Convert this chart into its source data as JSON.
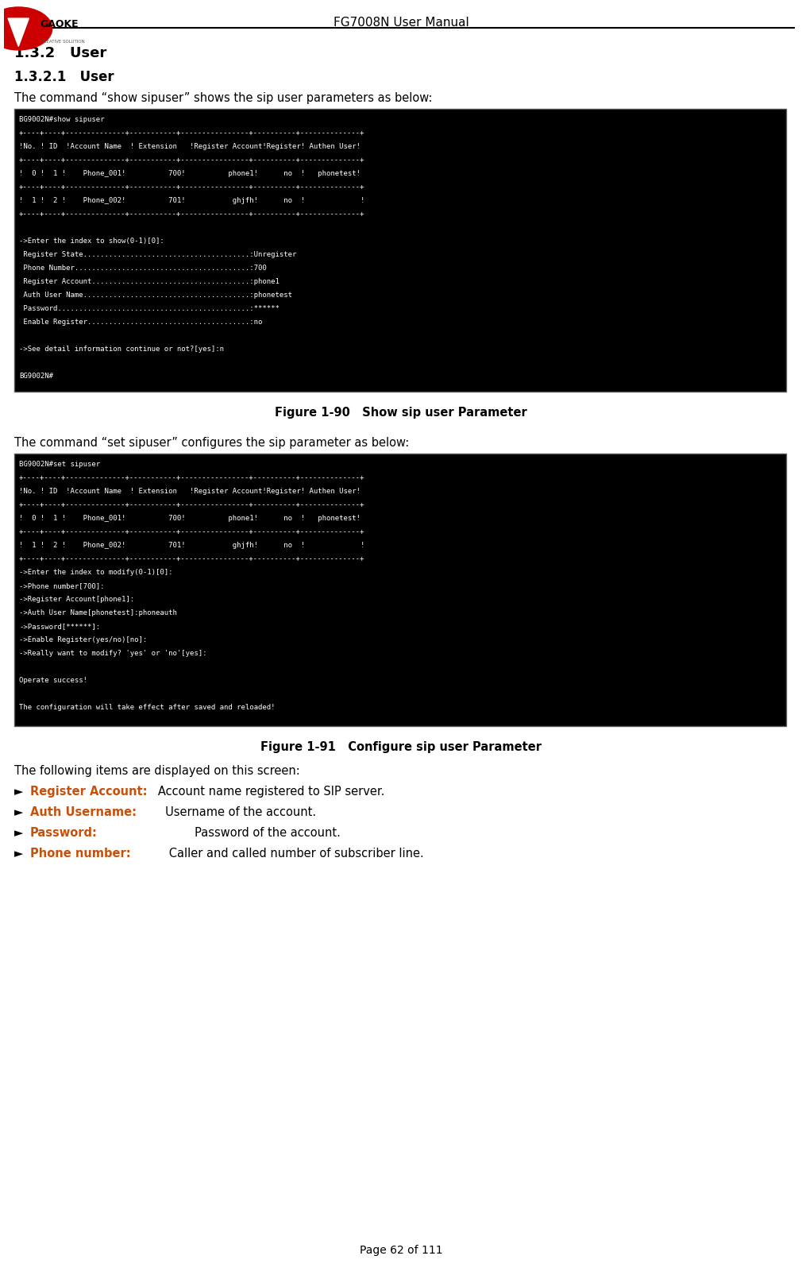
{
  "page_title": "FG7008N User Manual",
  "section_title": "1.3.2   User",
  "subsection_title": "1.3.2.1   User",
  "intro_text1": "The command “show sipuser” shows the sip user parameters as below:",
  "terminal_box1": [
    "BG9002N#show sipuser",
    "+----+----+--------------+-----------+----------------+----------+--------------+",
    "!No. ! ID  !Account Name  ! Extension   !Register Account!Register! Authen User!",
    "+----+----+--------------+-----------+----------------+----------+--------------+",
    "!  0 !  1 !    Phone_001!          700!          phone1!      no  !   phonetest!",
    "+----+----+--------------+-----------+----------------+----------+--------------+",
    "!  1 !  2 !    Phone_002!          701!           ghjfh!      no  !             !",
    "+----+----+--------------+-----------+----------------+----------+--------------+",
    "",
    "->Enter the index to show(0-1)[0]:",
    " Register State.......................................:Unregister",
    " Phone Number.........................................:700",
    " Register Account.....................................:phone1",
    " Auth User Name.......................................:phonetest",
    " Password.............................................:******",
    " Enable Register......................................:no",
    "",
    "->See detail information continue or not?[yes]:n",
    "",
    "BG9002N#"
  ],
  "figure1_caption": "Figure 1-90   Show sip user Parameter",
  "intro_text2": "The command “set sipuser” configures the sip parameter as below:",
  "terminal_box2": [
    "BG9002N#set sipuser",
    "+----+----+--------------+-----------+----------------+----------+--------------+",
    "!No. ! ID  !Account Name  ! Extension   !Register Account!Register! Authen User!",
    "+----+----+--------------+-----------+----------------+----------+--------------+",
    "!  0 !  1 !    Phone_001!          700!          phone1!      no  !   phonetest!",
    "+----+----+--------------+-----------+----------------+----------+--------------+",
    "!  1 !  2 !    Phone_002!          701!           ghjfh!      no  !             !",
    "+----+----+--------------+-----------+----------------+----------+--------------+",
    "->Enter the index to modify(0-1)[0]:",
    "->Phone number[700]:",
    "->Register Account[phone1]:",
    "->Auth User Name[phonetest]:phoneauth",
    "->Password[******]:",
    "->Enable Register(yes/no)[no]:",
    "->Really want to modify? 'yes' or 'no'[yes]:",
    "",
    "Operate success!",
    "",
    "The configuration will take effect after saved and reloaded!"
  ],
  "figure2_caption": "Figure 1-91   Configure sip user Parameter",
  "following_text": "The following items are displayed on this screen:",
  "bullet_items": [
    {
      "label": "Register Account:",
      "label_color": "#c8500a",
      "text": "   Account name registered to SIP server."
    },
    {
      "label": "Auth Username:",
      "label_color": "#c8500a",
      "text": "     Username of the account."
    },
    {
      "label": "Password:",
      "label_color": "#c8500a",
      "text": "             Password of the account."
    },
    {
      "label": "Phone number:",
      "label_color": "#c8500a",
      "text": "      Caller and called number of subscriber line."
    }
  ],
  "page_footer": "Page 62 of 111",
  "bg_color": "#000000",
  "fg_color": "#ffffff",
  "terminal_font_size": 6.5,
  "body_font_size": 10,
  "header_line_color": "#333333"
}
